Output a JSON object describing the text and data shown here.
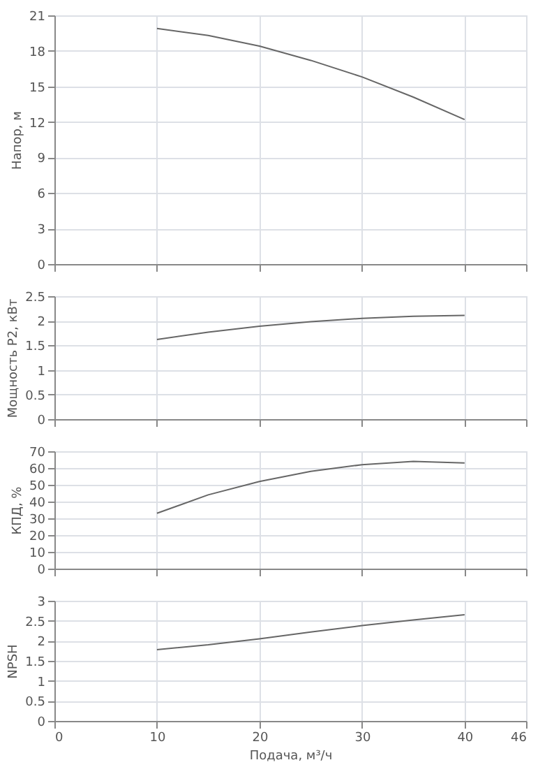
{
  "chart_data": [
    {
      "type": "line",
      "ylabel": "Напор, м",
      "x": [
        10,
        15,
        20,
        25,
        30,
        35,
        40
      ],
      "series": [
        {
          "color": "#666666",
          "values": [
            19.9,
            19.3,
            18.4,
            17.2,
            15.8,
            14.1,
            12.2
          ]
        }
      ],
      "xlim": [
        0,
        46
      ],
      "xticks": [
        0,
        10,
        20,
        30,
        40,
        46
      ],
      "ylim": [
        0,
        21
      ],
      "yticks": [
        0,
        3,
        6,
        9,
        12,
        15,
        18,
        21
      ],
      "grid": true,
      "tick_labels": "y"
    },
    {
      "type": "line",
      "ylabel": "Мощность P2, кВт",
      "x": [
        10,
        15,
        20,
        25,
        30,
        35,
        40
      ],
      "series": [
        {
          "color": "#666666",
          "values": [
            1.62,
            1.77,
            1.89,
            1.98,
            2.05,
            2.09,
            2.11
          ]
        }
      ],
      "xlim": [
        0,
        46
      ],
      "xticks": [
        0,
        10,
        20,
        30,
        40,
        46
      ],
      "ylim": [
        0,
        2.5
      ],
      "yticks": [
        0,
        0.5,
        1,
        1.5,
        2,
        2.5
      ],
      "grid": true,
      "tick_labels": "y"
    },
    {
      "type": "line",
      "ylabel": "КПД, %",
      "x": [
        10,
        15,
        20,
        25,
        30,
        35,
        40
      ],
      "series": [
        {
          "color": "#666666",
          "values": [
            33,
            44,
            52,
            58,
            62,
            64,
            63
          ]
        }
      ],
      "xlim": [
        0,
        46
      ],
      "xticks": [
        0,
        10,
        20,
        30,
        40,
        46
      ],
      "ylim": [
        0,
        70
      ],
      "yticks": [
        0,
        10,
        20,
        30,
        40,
        50,
        60,
        70
      ],
      "grid": true,
      "tick_labels": "y"
    },
    {
      "type": "line",
      "ylabel": "NPSH",
      "xlabel": "Подача, м³/ч",
      "x": [
        10,
        15,
        20,
        25,
        30,
        35,
        40
      ],
      "series": [
        {
          "color": "#666666",
          "values": [
            1.78,
            1.9,
            2.05,
            2.22,
            2.38,
            2.52,
            2.65
          ]
        }
      ],
      "xlim": [
        0,
        46
      ],
      "xticks": [
        0,
        10,
        20,
        30,
        40,
        46
      ],
      "ylim": [
        0,
        3
      ],
      "yticks": [
        0,
        0.5,
        1,
        1.5,
        2,
        2.5,
        3
      ],
      "grid": true
    }
  ]
}
